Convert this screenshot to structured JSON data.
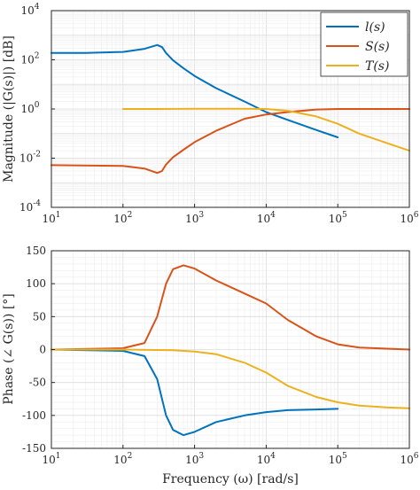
{
  "chart_data": [
    {
      "type": "line",
      "xscale": "log",
      "yscale": "log",
      "xlim": [
        10,
        1000000
      ],
      "ylim": [
        0.0001,
        10000
      ],
      "ylabel": "Magnitude (|G(s)|) [dB]",
      "xlabel": "",
      "grid": true,
      "legend": "top-right",
      "x_ticks": [
        "10^1",
        "10^2",
        "10^3",
        "10^4",
        "10^5",
        "10^6"
      ],
      "y_ticks": [
        "10^-4",
        "10^-2",
        "10^0",
        "10^2",
        "10^4"
      ],
      "series": [
        {
          "name": "l(s)",
          "color": "#0072BD",
          "points": [
            [
              10,
              190
            ],
            [
              30,
              190
            ],
            [
              100,
              210
            ],
            [
              200,
              280
            ],
            [
              300,
              400
            ],
            [
              350,
              330
            ],
            [
              400,
              190
            ],
            [
              500,
              95
            ],
            [
              700,
              45
            ],
            [
              1000,
              22
            ],
            [
              2000,
              7
            ],
            [
              5000,
              2
            ],
            [
              10000,
              0.75
            ],
            [
              20000,
              0.36
            ],
            [
              50000,
              0.14
            ],
            [
              100000,
              0.07
            ]
          ]
        },
        {
          "name": "S(s)",
          "color": "#D95319",
          "points": [
            [
              10,
              0.0052
            ],
            [
              100,
              0.0048
            ],
            [
              200,
              0.0038
            ],
            [
              300,
              0.0025
            ],
            [
              350,
              0.003
            ],
            [
              400,
              0.0055
            ],
            [
              500,
              0.011
            ],
            [
              700,
              0.022
            ],
            [
              1000,
              0.045
            ],
            [
              2000,
              0.13
            ],
            [
              5000,
              0.4
            ],
            [
              10000,
              0.6
            ],
            [
              20000,
              0.75
            ],
            [
              50000,
              0.95
            ],
            [
              100000,
              1
            ],
            [
              1000000,
              1
            ]
          ]
        },
        {
          "name": "T(s)",
          "color": "#EDB120",
          "points": [
            [
              100,
              1
            ],
            [
              300,
              1
            ],
            [
              1000,
              1.02
            ],
            [
              5000,
              1.02
            ],
            [
              10000,
              1
            ],
            [
              20000,
              0.85
            ],
            [
              50000,
              0.5
            ],
            [
              100000,
              0.25
            ],
            [
              200000,
              0.1
            ],
            [
              500000,
              0.04
            ],
            [
              1000000,
              0.02
            ]
          ]
        }
      ]
    },
    {
      "type": "line",
      "xscale": "log",
      "xlim": [
        10,
        1000000
      ],
      "ylim": [
        -150,
        150
      ],
      "ylabel": "Phase (∠ G(s)) [°]",
      "xlabel": "Frequency (ω) [rad/s]",
      "grid": true,
      "x_ticks": [
        "10^1",
        "10^2",
        "10^3",
        "10^4",
        "10^5",
        "10^6"
      ],
      "y_ticks": [
        "-150",
        "-100",
        "-50",
        "0",
        "50",
        "100",
        "150"
      ],
      "series": [
        {
          "name": "l(s)",
          "color": "#0072BD",
          "points": [
            [
              10,
              0
            ],
            [
              100,
              -2
            ],
            [
              200,
              -10
            ],
            [
              300,
              -45
            ],
            [
              400,
              -100
            ],
            [
              500,
              -122
            ],
            [
              700,
              -130
            ],
            [
              1000,
              -125
            ],
            [
              2000,
              -110
            ],
            [
              5000,
              -100
            ],
            [
              10000,
              -95
            ],
            [
              20000,
              -92
            ],
            [
              50000,
              -91
            ],
            [
              100000,
              -90
            ]
          ]
        },
        {
          "name": "S(s)",
          "color": "#D95319",
          "points": [
            [
              10,
              0
            ],
            [
              100,
              2
            ],
            [
              200,
              10
            ],
            [
              300,
              50
            ],
            [
              400,
              100
            ],
            [
              500,
              122
            ],
            [
              700,
              128
            ],
            [
              1000,
              123
            ],
            [
              2000,
              105
            ],
            [
              5000,
              85
            ],
            [
              10000,
              70
            ],
            [
              20000,
              45
            ],
            [
              50000,
              20
            ],
            [
              100000,
              8
            ],
            [
              200000,
              3
            ],
            [
              1000000,
              0
            ]
          ]
        },
        {
          "name": "T(s)",
          "color": "#EDB120",
          "points": [
            [
              10,
              0
            ],
            [
              100,
              0
            ],
            [
              500,
              -1
            ],
            [
              1000,
              -3
            ],
            [
              2000,
              -7
            ],
            [
              5000,
              -20
            ],
            [
              10000,
              -35
            ],
            [
              20000,
              -55
            ],
            [
              50000,
              -72
            ],
            [
              100000,
              -80
            ],
            [
              200000,
              -85
            ],
            [
              500000,
              -88
            ],
            [
              1000000,
              -89
            ]
          ]
        }
      ]
    }
  ]
}
